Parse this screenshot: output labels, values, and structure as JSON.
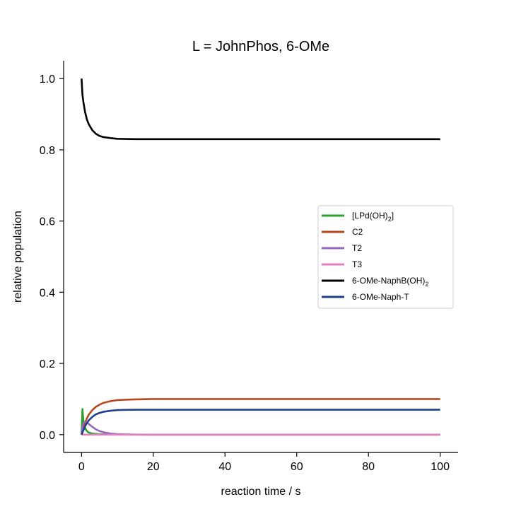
{
  "chart_data": {
    "type": "line",
    "title": "L = JohnPhos, 6-OMe",
    "xlabel": "reaction time / s",
    "ylabel": "relative population",
    "xlim": [
      -5,
      105
    ],
    "ylim": [
      -0.05,
      1.05
    ],
    "xticks": [
      0,
      20,
      40,
      60,
      80,
      100
    ],
    "xtick_labels": [
      "0",
      "20",
      "40",
      "60",
      "80",
      "100"
    ],
    "yticks": [
      0.0,
      0.2,
      0.4,
      0.6,
      0.8,
      1.0
    ],
    "ytick_labels": [
      "0.0",
      "0.2",
      "0.4",
      "0.6",
      "0.8",
      "1.0"
    ],
    "grid": false,
    "legend_position": "center-right",
    "x": [
      0,
      0.25,
      0.5,
      1,
      1.5,
      2,
      3,
      4,
      5,
      6,
      8,
      10,
      12,
      15,
      20,
      30,
      40,
      50,
      60,
      70,
      80,
      90,
      100
    ],
    "series": [
      {
        "name": "[LPd(OH)",
        "name_sub": "2",
        "name_suffix": "]",
        "color": "#2ca02c",
        "values": [
          0.0,
          0.072,
          0.04,
          0.018,
          0.01,
          0.006,
          0.003,
          0.002,
          0.001,
          0.001,
          0.0005,
          0.0003,
          0.0002,
          0.0001,
          0.0,
          0.0,
          0.0,
          0.0,
          0.0,
          0.0,
          0.0,
          0.0,
          0.0
        ]
      },
      {
        "name": "C2",
        "color": "#b5481f",
        "values": [
          0.0,
          0.008,
          0.018,
          0.034,
          0.046,
          0.056,
          0.069,
          0.078,
          0.084,
          0.089,
          0.094,
          0.097,
          0.098,
          0.099,
          0.1,
          0.1,
          0.1,
          0.1,
          0.1,
          0.1,
          0.1,
          0.1,
          0.1
        ]
      },
      {
        "name": "T2",
        "color": "#9467bd",
        "values": [
          0.0,
          0.02,
          0.032,
          0.036,
          0.034,
          0.03,
          0.022,
          0.015,
          0.01,
          0.007,
          0.003,
          0.0015,
          0.0008,
          0.0003,
          0.0,
          0.0,
          0.0,
          0.0,
          0.0,
          0.0,
          0.0,
          0.0,
          0.0
        ]
      },
      {
        "name": "T3",
        "color": "#e07fc0",
        "values": [
          0.0,
          0.0,
          0.0,
          0.0,
          0.0,
          0.0,
          0.0,
          0.0,
          0.0,
          0.0,
          0.0,
          0.0,
          0.0,
          0.0,
          0.0,
          0.0,
          0.0,
          0.0,
          0.0,
          0.0,
          0.0,
          0.0,
          0.0
        ]
      },
      {
        "name": "6-OMe-NaphB(OH)",
        "name_sub": "2",
        "name_suffix": "",
        "color": "#000000",
        "values": [
          1.0,
          0.955,
          0.935,
          0.905,
          0.885,
          0.872,
          0.855,
          0.845,
          0.839,
          0.836,
          0.833,
          0.831,
          0.8305,
          0.83,
          0.83,
          0.83,
          0.83,
          0.83,
          0.83,
          0.83,
          0.83,
          0.83,
          0.83
        ]
      },
      {
        "name": "6-OMe-Naph-T",
        "color": "#1f3f8f",
        "values": [
          0.0,
          0.006,
          0.012,
          0.024,
          0.033,
          0.04,
          0.05,
          0.057,
          0.061,
          0.064,
          0.067,
          0.069,
          0.0695,
          0.07,
          0.07,
          0.07,
          0.07,
          0.07,
          0.07,
          0.07,
          0.07,
          0.07,
          0.07
        ]
      }
    ]
  }
}
